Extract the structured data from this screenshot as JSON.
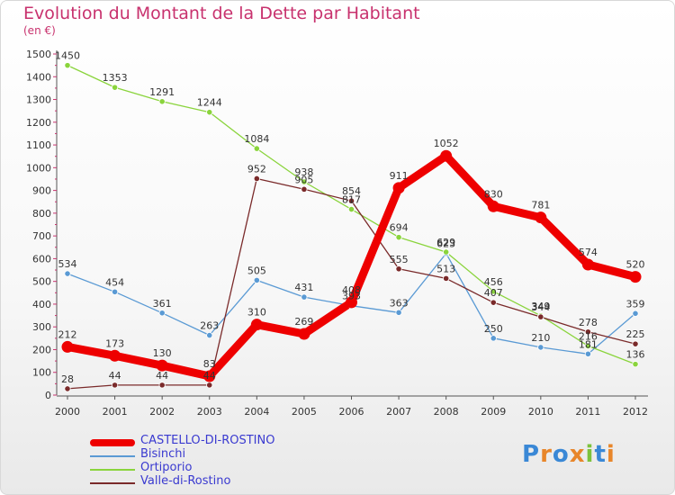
{
  "title": "Evolution du Montant de la Dette par Habitant",
  "unit_label": "(en €)",
  "logo_text": "Proxiti",
  "chart_data": {
    "type": "line",
    "title": "Evolution du Montant de la Dette par Habitant",
    "xlabel": "",
    "ylabel": "(en €)",
    "categories": [
      "2000",
      "2001",
      "2002",
      "2003",
      "2004",
      "2005",
      "2006",
      "2007",
      "2008",
      "2009",
      "2010",
      "2011",
      "2012"
    ],
    "ylim": [
      0,
      1500
    ],
    "yticks": [
      0,
      100,
      200,
      300,
      400,
      500,
      600,
      700,
      800,
      900,
      1000,
      1100,
      1200,
      1300,
      1400,
      1500
    ],
    "grid": false,
    "legend_position": "bottom-left",
    "series": [
      {
        "name": "CASTELLO-DI-ROSTINO",
        "color": "#ee0000",
        "values": [
          212,
          173,
          130,
          83,
          310,
          269,
          408,
          911,
          1052,
          830,
          781,
          574,
          520
        ]
      },
      {
        "name": "Bisinchi",
        "color": "#5a9ad4",
        "values": [
          534,
          454,
          361,
          263,
          505,
          431,
          393,
          363,
          623,
          250,
          210,
          181,
          359
        ]
      },
      {
        "name": "Ortiporio",
        "color": "#8ad43c",
        "values": [
          1450,
          1353,
          1291,
          1244,
          1084,
          938,
          817,
          694,
          629,
          456,
          349,
          216,
          136
        ]
      },
      {
        "name": "Valle-di-Rostino",
        "color": "#7a2a2a",
        "values": [
          28,
          44,
          44,
          44,
          952,
          905,
          854,
          555,
          513,
          407,
          344,
          278,
          225
        ]
      }
    ]
  }
}
